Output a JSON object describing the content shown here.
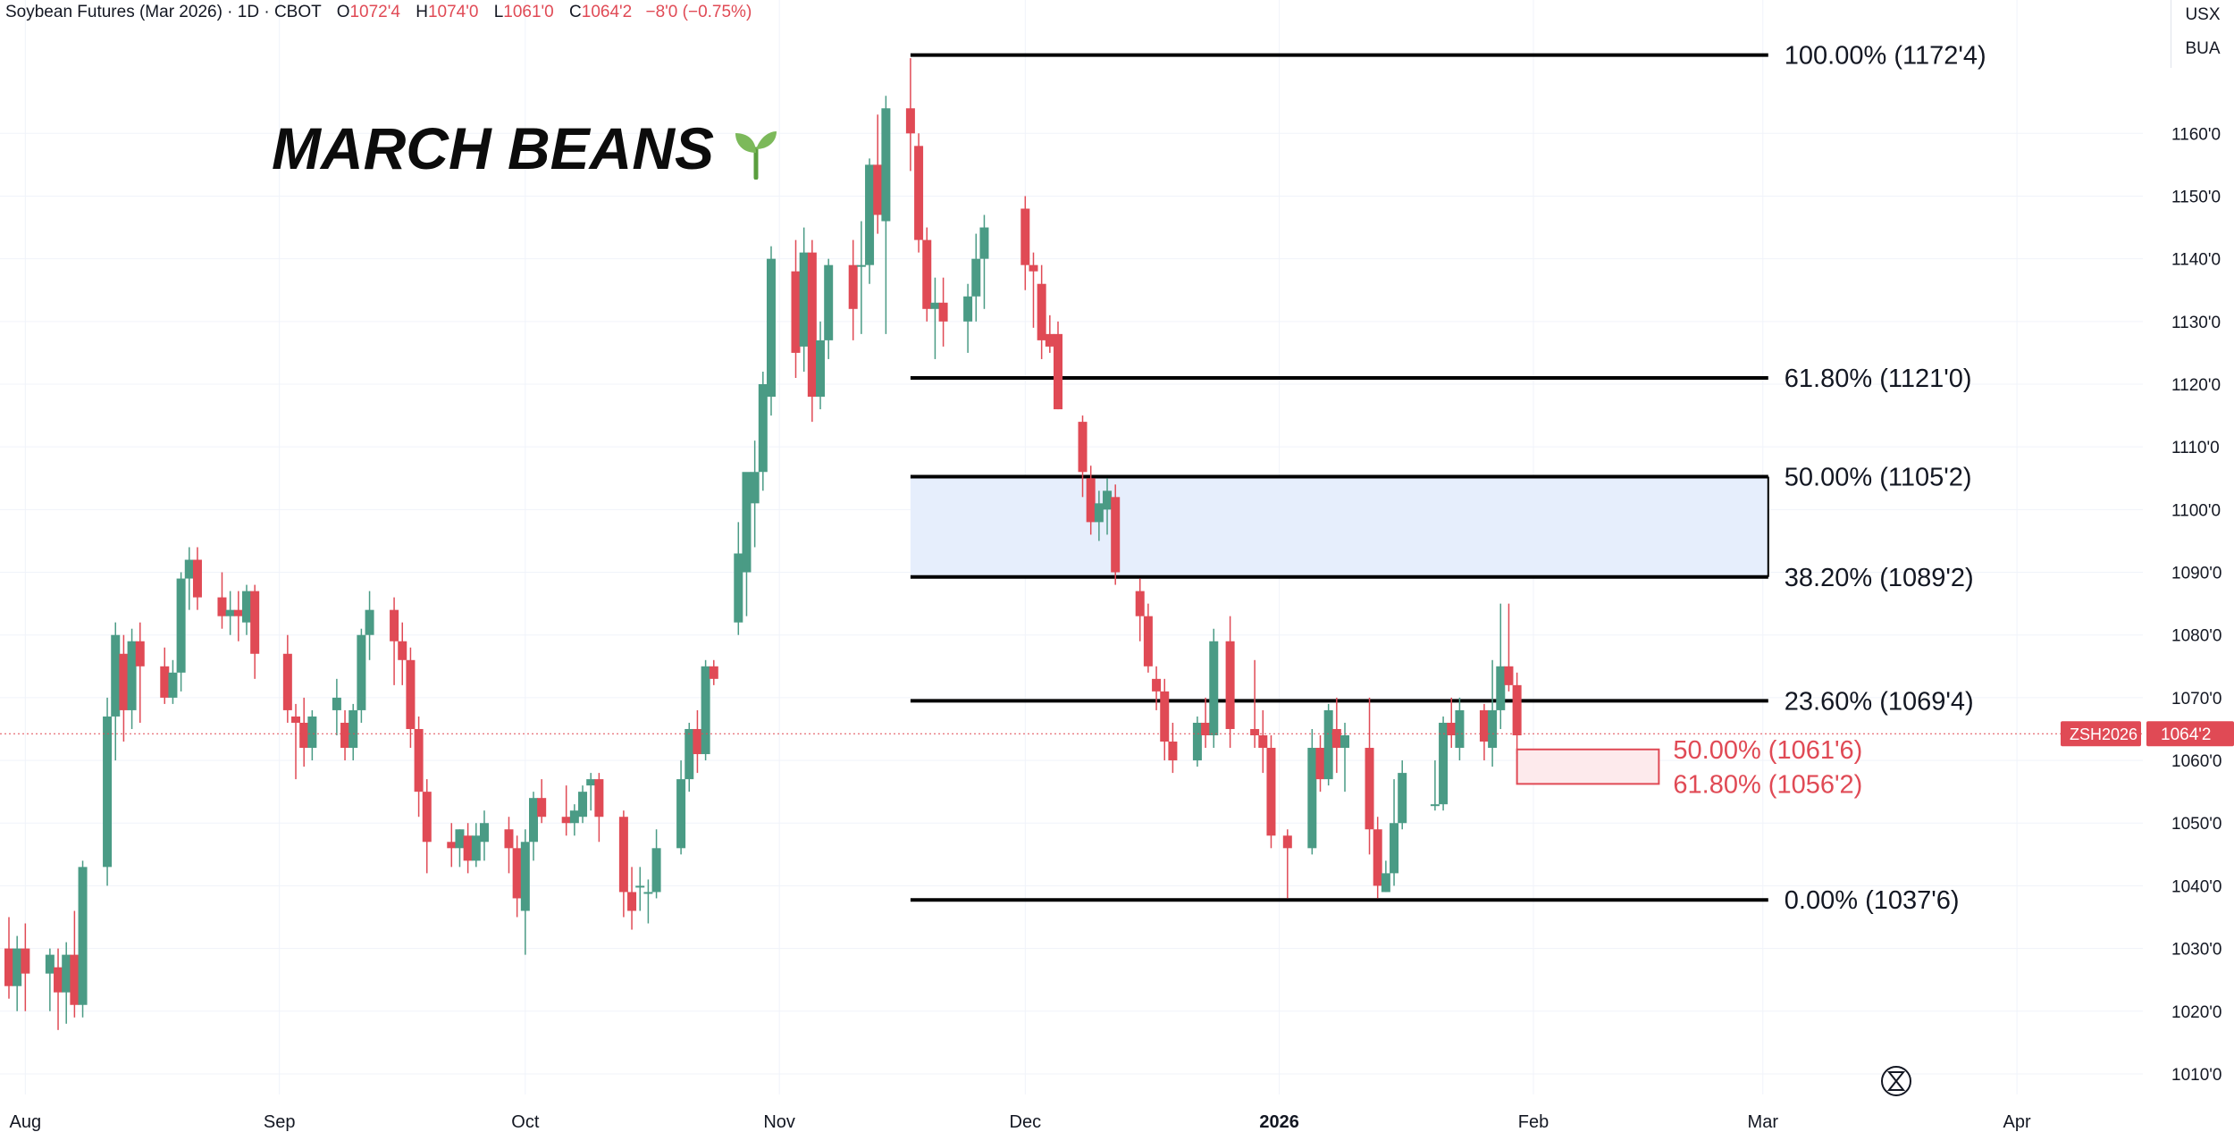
{
  "header": {
    "symbol": "Soybean Futures (Mar 2026) · 1D · CBOT",
    "open_label": "O",
    "open": "1072'4",
    "high_label": "H",
    "high": "1074'0",
    "low_label": "L",
    "low": "1061'0",
    "close_label": "C",
    "close": "1064'2",
    "change": "−8'0 (−0.75%)"
  },
  "currency": {
    "unit": "USX",
    "sub": "BUA"
  },
  "brand": {
    "title": "MARCH BEANS"
  },
  "last_price": {
    "symbol": "ZSH2026",
    "value": "1064'2"
  },
  "colors": {
    "up": "#4a9b85",
    "down": "#e04a55",
    "zone": "#e6eefc"
  },
  "chart_data": {
    "type": "candlestick",
    "y_axis": {
      "range": [
        1007,
        1177
      ],
      "ticks": [
        {
          "v": 1010,
          "l": "1010'0"
        },
        {
          "v": 1020,
          "l": "1020'0"
        },
        {
          "v": 1030,
          "l": "1030'0"
        },
        {
          "v": 1040,
          "l": "1040'0"
        },
        {
          "v": 1050,
          "l": "1050'0"
        },
        {
          "v": 1060,
          "l": "1060'0"
        },
        {
          "v": 1070,
          "l": "1070'0"
        },
        {
          "v": 1080,
          "l": "1080'0"
        },
        {
          "v": 1090,
          "l": "1090'0"
        },
        {
          "v": 1100,
          "l": "1100'0"
        },
        {
          "v": 1110,
          "l": "1110'0"
        },
        {
          "v": 1120,
          "l": "1120'0"
        },
        {
          "v": 1130,
          "l": "1130'0"
        },
        {
          "v": 1140,
          "l": "1140'0"
        },
        {
          "v": 1150,
          "l": "1150'0"
        },
        {
          "v": 1160,
          "l": "1160'0"
        }
      ]
    },
    "x_axis": {
      "range": [
        "2025-07-30",
        "2026-04-12"
      ],
      "ticks": [
        {
          "d": "2025-08-01",
          "l": "Aug",
          "bold": false
        },
        {
          "d": "2025-09-01",
          "l": "Sep",
          "bold": false
        },
        {
          "d": "2025-10-01",
          "l": "Oct",
          "bold": false
        },
        {
          "d": "2025-11-01",
          "l": "Nov",
          "bold": false
        },
        {
          "d": "2025-12-01",
          "l": "Dec",
          "bold": false
        },
        {
          "d": "2026-01-01",
          "l": "2026",
          "bold": true
        },
        {
          "d": "2026-02-01",
          "l": "Feb",
          "bold": false
        },
        {
          "d": "2026-03-01",
          "l": "Mar",
          "bold": false
        },
        {
          "d": "2026-04-01",
          "l": "Apr",
          "bold": false
        }
      ]
    },
    "candles": [
      {
        "d": "2025-07-30",
        "o": 1030,
        "h": 1035,
        "l": 1022,
        "c": 1024
      },
      {
        "d": "2025-07-31",
        "o": 1024,
        "h": 1032,
        "l": 1020,
        "c": 1030
      },
      {
        "d": "2025-08-01",
        "o": 1030,
        "h": 1034,
        "l": 1020,
        "c": 1026
      },
      {
        "d": "2025-08-04",
        "o": 1026,
        "h": 1030,
        "l": 1020,
        "c": 1029
      },
      {
        "d": "2025-08-05",
        "o": 1027,
        "h": 1030,
        "l": 1017,
        "c": 1023
      },
      {
        "d": "2025-08-06",
        "o": 1023,
        "h": 1031,
        "l": 1018,
        "c": 1029
      },
      {
        "d": "2025-08-07",
        "o": 1029,
        "h": 1036,
        "l": 1019,
        "c": 1021
      },
      {
        "d": "2025-08-08",
        "o": 1021,
        "h": 1044,
        "l": 1019,
        "c": 1043
      },
      {
        "d": "2025-08-11",
        "o": 1043,
        "h": 1070,
        "l": 1040,
        "c": 1067
      },
      {
        "d": "2025-08-12",
        "o": 1067,
        "h": 1082,
        "l": 1060,
        "c": 1080
      },
      {
        "d": "2025-08-13",
        "o": 1077,
        "h": 1080,
        "l": 1063,
        "c": 1068
      },
      {
        "d": "2025-08-14",
        "o": 1068,
        "h": 1081,
        "l": 1065,
        "c": 1079
      },
      {
        "d": "2025-08-15",
        "o": 1079,
        "h": 1082,
        "l": 1066,
        "c": 1075
      },
      {
        "d": "2025-08-18",
        "o": 1075,
        "h": 1078,
        "l": 1069,
        "c": 1070
      },
      {
        "d": "2025-08-19",
        "o": 1070,
        "h": 1076,
        "l": 1069,
        "c": 1074
      },
      {
        "d": "2025-08-20",
        "o": 1074,
        "h": 1090,
        "l": 1071,
        "c": 1089
      },
      {
        "d": "2025-08-21",
        "o": 1089,
        "h": 1094,
        "l": 1084,
        "c": 1092
      },
      {
        "d": "2025-08-22",
        "o": 1092,
        "h": 1094,
        "l": 1084,
        "c": 1086
      },
      {
        "d": "2025-08-25",
        "o": 1086,
        "h": 1090,
        "l": 1081,
        "c": 1083
      },
      {
        "d": "2025-08-26",
        "o": 1083,
        "h": 1087,
        "l": 1080,
        "c": 1084
      },
      {
        "d": "2025-08-27",
        "o": 1084,
        "h": 1087,
        "l": 1079,
        "c": 1083
      },
      {
        "d": "2025-08-28",
        "o": 1082,
        "h": 1088,
        "l": 1080,
        "c": 1087
      },
      {
        "d": "2025-08-29",
        "o": 1087,
        "h": 1088,
        "l": 1073,
        "c": 1077
      },
      {
        "d": "2025-09-02",
        "o": 1077,
        "h": 1080,
        "l": 1066,
        "c": 1068
      },
      {
        "d": "2025-09-03",
        "o": 1067,
        "h": 1069,
        "l": 1057,
        "c": 1066
      },
      {
        "d": "2025-09-04",
        "o": 1066,
        "h": 1070,
        "l": 1059,
        "c": 1062
      },
      {
        "d": "2025-09-05",
        "o": 1062,
        "h": 1068,
        "l": 1060,
        "c": 1067
      },
      {
        "d": "2025-09-08",
        "o": 1068,
        "h": 1073,
        "l": 1064,
        "c": 1070
      },
      {
        "d": "2025-09-09",
        "o": 1066,
        "h": 1068,
        "l": 1060,
        "c": 1062
      },
      {
        "d": "2025-09-10",
        "o": 1062,
        "h": 1069,
        "l": 1060,
        "c": 1068
      },
      {
        "d": "2025-09-11",
        "o": 1068,
        "h": 1081,
        "l": 1066,
        "c": 1080
      },
      {
        "d": "2025-09-12",
        "o": 1080,
        "h": 1087,
        "l": 1076,
        "c": 1084
      },
      {
        "d": "2025-09-15",
        "o": 1084,
        "h": 1086,
        "l": 1072,
        "c": 1079
      },
      {
        "d": "2025-09-16",
        "o": 1079,
        "h": 1082,
        "l": 1072,
        "c": 1076
      },
      {
        "d": "2025-09-17",
        "o": 1076,
        "h": 1078,
        "l": 1062,
        "c": 1065
      },
      {
        "d": "2025-09-18",
        "o": 1065,
        "h": 1067,
        "l": 1051,
        "c": 1055
      },
      {
        "d": "2025-09-19",
        "o": 1055,
        "h": 1057,
        "l": 1042,
        "c": 1047
      },
      {
        "d": "2025-09-22",
        "o": 1047,
        "h": 1050,
        "l": 1043,
        "c": 1046
      },
      {
        "d": "2025-09-23",
        "o": 1046,
        "h": 1049,
        "l": 1043,
        "c": 1049
      },
      {
        "d": "2025-09-24",
        "o": 1048,
        "h": 1050,
        "l": 1042,
        "c": 1044
      },
      {
        "d": "2025-09-25",
        "o": 1044,
        "h": 1050,
        "l": 1043,
        "c": 1048
      },
      {
        "d": "2025-09-26",
        "o": 1047,
        "h": 1052,
        "l": 1044,
        "c": 1050
      },
      {
        "d": "2025-09-29",
        "o": 1049,
        "h": 1051,
        "l": 1042,
        "c": 1046
      },
      {
        "d": "2025-09-30",
        "o": 1046,
        "h": 1048,
        "l": 1035,
        "c": 1038
      },
      {
        "d": "2025-10-01",
        "o": 1036,
        "h": 1049,
        "l": 1029,
        "c": 1047
      },
      {
        "d": "2025-10-02",
        "o": 1047,
        "h": 1055,
        "l": 1044,
        "c": 1054
      },
      {
        "d": "2025-10-03",
        "o": 1054,
        "h": 1057,
        "l": 1050,
        "c": 1051
      },
      {
        "d": "2025-10-06",
        "o": 1051,
        "h": 1056,
        "l": 1048,
        "c": 1050
      },
      {
        "d": "2025-10-07",
        "o": 1050,
        "h": 1053,
        "l": 1048,
        "c": 1052
      },
      {
        "d": "2025-10-08",
        "o": 1051,
        "h": 1056,
        "l": 1050,
        "c": 1055
      },
      {
        "d": "2025-10-09",
        "o": 1056,
        "h": 1058,
        "l": 1052,
        "c": 1057
      },
      {
        "d": "2025-10-10",
        "o": 1057,
        "h": 1058,
        "l": 1047,
        "c": 1051
      },
      {
        "d": "2025-10-13",
        "o": 1051,
        "h": 1052,
        "l": 1035,
        "c": 1039
      },
      {
        "d": "2025-10-14",
        "o": 1039,
        "h": 1043,
        "l": 1033,
        "c": 1036
      },
      {
        "d": "2025-10-15",
        "o": 1040,
        "h": 1043,
        "l": 1036,
        "c": 1040
      },
      {
        "d": "2025-10-16",
        "o": 1039,
        "h": 1041,
        "l": 1034,
        "c": 1039
      },
      {
        "d": "2025-10-17",
        "o": 1039,
        "h": 1049,
        "l": 1038,
        "c": 1046
      },
      {
        "d": "2025-10-20",
        "o": 1046,
        "h": 1060,
        "l": 1045,
        "c": 1057
      },
      {
        "d": "2025-10-21",
        "o": 1057,
        "h": 1066,
        "l": 1055,
        "c": 1065
      },
      {
        "d": "2025-10-22",
        "o": 1065,
        "h": 1068,
        "l": 1058,
        "c": 1061
      },
      {
        "d": "2025-10-23",
        "o": 1061,
        "h": 1076,
        "l": 1060,
        "c": 1075
      },
      {
        "d": "2025-10-24",
        "o": 1075,
        "h": 1076,
        "l": 1072,
        "c": 1073
      },
      {
        "d": "2025-10-27",
        "o": 1082,
        "h": 1098,
        "l": 1080,
        "c": 1093
      },
      {
        "d": "2025-10-28",
        "o": 1090,
        "h": 1105,
        "l": 1083,
        "c": 1106
      },
      {
        "d": "2025-10-29",
        "o": 1101,
        "h": 1111,
        "l": 1094,
        "c": 1106
      },
      {
        "d": "2025-10-30",
        "o": 1106,
        "h": 1122,
        "l": 1103,
        "c": 1120
      },
      {
        "d": "2025-10-31",
        "o": 1118,
        "h": 1142,
        "l": 1115,
        "c": 1140
      },
      {
        "d": "2025-11-03",
        "o": 1138,
        "h": 1143,
        "l": 1121,
        "c": 1125
      },
      {
        "d": "2025-11-04",
        "o": 1126,
        "h": 1145,
        "l": 1122,
        "c": 1141
      },
      {
        "d": "2025-11-05",
        "o": 1141,
        "h": 1143,
        "l": 1114,
        "c": 1118
      },
      {
        "d": "2025-11-06",
        "o": 1118,
        "h": 1130,
        "l": 1116,
        "c": 1127
      },
      {
        "d": "2025-11-07",
        "o": 1127,
        "h": 1140,
        "l": 1124,
        "c": 1139
      },
      {
        "d": "2025-11-10",
        "o": 1139,
        "h": 1143,
        "l": 1127,
        "c": 1132
      },
      {
        "d": "2025-11-11",
        "o": 1139,
        "h": 1146,
        "l": 1128,
        "c": 1139
      },
      {
        "d": "2025-11-12",
        "o": 1139,
        "h": 1156,
        "l": 1136,
        "c": 1155
      },
      {
        "d": "2025-11-13",
        "o": 1155,
        "h": 1163,
        "l": 1144,
        "c": 1147
      },
      {
        "d": "2025-11-14",
        "o": 1146,
        "h": 1166,
        "l": 1128,
        "c": 1164
      },
      {
        "d": "2025-11-17",
        "o": 1164,
        "h": 1172,
        "l": 1154,
        "c": 1160
      },
      {
        "d": "2025-11-18",
        "o": 1158,
        "h": 1160,
        "l": 1141,
        "c": 1143
      },
      {
        "d": "2025-11-19",
        "o": 1143,
        "h": 1145,
        "l": 1130,
        "c": 1132
      },
      {
        "d": "2025-11-20",
        "o": 1132,
        "h": 1137,
        "l": 1124,
        "c": 1133
      },
      {
        "d": "2025-11-21",
        "o": 1133,
        "h": 1137,
        "l": 1126,
        "c": 1130
      },
      {
        "d": "2025-11-24",
        "o": 1130,
        "h": 1136,
        "l": 1125,
        "c": 1134
      },
      {
        "d": "2025-11-25",
        "o": 1134,
        "h": 1144,
        "l": 1130,
        "c": 1140
      },
      {
        "d": "2025-11-26",
        "o": 1140,
        "h": 1147,
        "l": 1132,
        "c": 1145
      },
      {
        "d": "2025-12-01",
        "o": 1148,
        "h": 1150,
        "l": 1135,
        "c": 1139
      },
      {
        "d": "2025-12-02",
        "o": 1139,
        "h": 1141,
        "l": 1129,
        "c": 1138
      },
      {
        "d": "2025-12-03",
        "o": 1136,
        "h": 1139,
        "l": 1124,
        "c": 1127
      },
      {
        "d": "2025-12-04",
        "o": 1128,
        "h": 1131,
        "l": 1125,
        "c": 1126
      },
      {
        "d": "2025-12-05",
        "o": 1128,
        "h": 1130,
        "l": 1116,
        "c": 1116
      },
      {
        "d": "2025-12-08",
        "o": 1114,
        "h": 1115,
        "l": 1102,
        "c": 1106
      },
      {
        "d": "2025-12-09",
        "o": 1105,
        "h": 1107,
        "l": 1096,
        "c": 1098
      },
      {
        "d": "2025-12-10",
        "o": 1098,
        "h": 1103,
        "l": 1095,
        "c": 1101
      },
      {
        "d": "2025-12-11",
        "o": 1100,
        "h": 1105,
        "l": 1096,
        "c": 1103
      },
      {
        "d": "2025-12-12",
        "o": 1102,
        "h": 1104,
        "l": 1088,
        "c": 1090
      },
      {
        "d": "2025-12-15",
        "o": 1087,
        "h": 1089,
        "l": 1079,
        "c": 1083
      },
      {
        "d": "2025-12-16",
        "o": 1083,
        "h": 1085,
        "l": 1074,
        "c": 1075
      },
      {
        "d": "2025-12-17",
        "o": 1073,
        "h": 1075,
        "l": 1068,
        "c": 1071
      },
      {
        "d": "2025-12-18",
        "o": 1071,
        "h": 1073,
        "l": 1060,
        "c": 1063
      },
      {
        "d": "2025-12-19",
        "o": 1063,
        "h": 1066,
        "l": 1058,
        "c": 1060
      },
      {
        "d": "2025-12-22",
        "o": 1060,
        "h": 1067,
        "l": 1059,
        "c": 1066
      },
      {
        "d": "2025-12-23",
        "o": 1066,
        "h": 1070,
        "l": 1062,
        "c": 1064
      },
      {
        "d": "2025-12-24",
        "o": 1064,
        "h": 1081,
        "l": 1062,
        "c": 1079
      },
      {
        "d": "2025-12-26",
        "o": 1079,
        "h": 1083,
        "l": 1062,
        "c": 1065
      },
      {
        "d": "2025-12-29",
        "o": 1065,
        "h": 1076,
        "l": 1062,
        "c": 1064
      },
      {
        "d": "2025-12-30",
        "o": 1064,
        "h": 1068,
        "l": 1058,
        "c": 1062
      },
      {
        "d": "2025-12-31",
        "o": 1062,
        "h": 1064,
        "l": 1046,
        "c": 1048
      },
      {
        "d": "2026-01-02",
        "o": 1048,
        "h": 1049,
        "l": 1038,
        "c": 1046
      },
      {
        "d": "2026-01-05",
        "o": 1046,
        "h": 1065,
        "l": 1045,
        "c": 1062
      },
      {
        "d": "2026-01-06",
        "o": 1062,
        "h": 1064,
        "l": 1055,
        "c": 1057
      },
      {
        "d": "2026-01-07",
        "o": 1057,
        "h": 1069,
        "l": 1056,
        "c": 1068
      },
      {
        "d": "2026-01-08",
        "o": 1065,
        "h": 1070,
        "l": 1058,
        "c": 1062
      },
      {
        "d": "2026-01-09",
        "o": 1062,
        "h": 1066,
        "l": 1055,
        "c": 1064
      },
      {
        "d": "2026-01-12",
        "o": 1062,
        "h": 1070,
        "l": 1045,
        "c": 1049
      },
      {
        "d": "2026-01-13",
        "o": 1049,
        "h": 1051,
        "l": 1038,
        "c": 1040
      },
      {
        "d": "2026-01-14",
        "o": 1039,
        "h": 1044,
        "l": 1039,
        "c": 1042
      },
      {
        "d": "2026-01-15",
        "o": 1042,
        "h": 1057,
        "l": 1040,
        "c": 1050
      },
      {
        "d": "2026-01-16",
        "o": 1050,
        "h": 1060,
        "l": 1049,
        "c": 1058
      },
      {
        "d": "2026-01-20",
        "o": 1053,
        "h": 1060,
        "l": 1052,
        "c": 1053
      },
      {
        "d": "2026-01-21",
        "o": 1053,
        "h": 1067,
        "l": 1052,
        "c": 1066
      },
      {
        "d": "2026-01-22",
        "o": 1066,
        "h": 1070,
        "l": 1062,
        "c": 1064
      },
      {
        "d": "2026-01-23",
        "o": 1062,
        "h": 1070,
        "l": 1060,
        "c": 1068
      },
      {
        "d": "2026-01-26",
        "o": 1068,
        "h": 1069,
        "l": 1060,
        "c": 1063
      },
      {
        "d": "2026-01-27",
        "o": 1062,
        "h": 1076,
        "l": 1059,
        "c": 1068
      },
      {
        "d": "2026-01-28",
        "o": 1068,
        "h": 1085,
        "l": 1065,
        "c": 1075
      },
      {
        "d": "2026-01-29",
        "o": 1075,
        "h": 1085,
        "l": 1071,
        "c": 1072
      },
      {
        "d": "2026-01-30",
        "o": 1072,
        "h": 1074,
        "l": 1061,
        "c": 1064
      }
    ],
    "fib_levels": [
      {
        "pct": "100.00%",
        "price": "1172'4",
        "v": 1172.5
      },
      {
        "pct": "61.80%",
        "price": "1121'0",
        "v": 1121.0
      },
      {
        "pct": "50.00%",
        "price": "1105'2",
        "v": 1105.25
      },
      {
        "pct": "38.20%",
        "price": "1089'2",
        "v": 1089.25
      },
      {
        "pct": "23.60%",
        "price": "1069'4",
        "v": 1069.5
      },
      {
        "pct": "0.00%",
        "price": "1037'6",
        "v": 1037.75
      }
    ],
    "fib_range": {
      "start": "2025-11-17",
      "end": "2026-03-01"
    },
    "zone": {
      "top": 1105.25,
      "bottom": 1089.25
    },
    "red_zone": {
      "top": 1061.75,
      "bottom": 1056.25,
      "start": "2026-01-30",
      "end": "2026-02-15",
      "labels": [
        {
          "pct": "50.00%",
          "price": "1061'6",
          "v": 1061.75
        },
        {
          "pct": "61.80%",
          "price": "1056'2",
          "v": 1056.25
        }
      ]
    },
    "last_value": 1064.25
  }
}
